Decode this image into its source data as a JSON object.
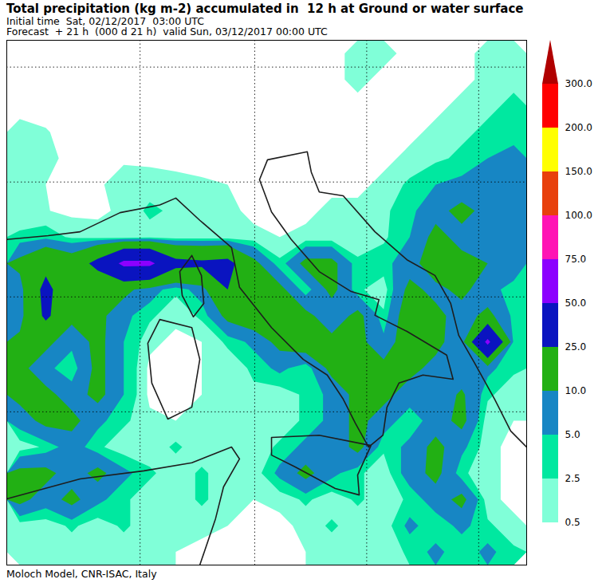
{
  "chart_data": {
    "type": "contour",
    "title": "Total precipitation (kg m-2) accumulated in  12 h at Ground or water surface",
    "subtitle": [
      "Initial time  Sat, 02/12/2017  03:00 UTC",
      "Forecast  + 21 h  (000 d 21 h)  valid Sun, 03/12/2017 00:00 UTC"
    ],
    "caption": "Moloch Model, CNR-ISAC, Italy",
    "xlim": [
      2,
      21.5
    ],
    "ylim": [
      35,
      48.7
    ],
    "xticks": [
      7,
      11.3,
      15.5,
      19.7
    ],
    "yticks": [
      39,
      42,
      45,
      48
    ],
    "grid": true,
    "tick_labels": false,
    "precipitation": {
      "values": [
        [
          0,
          0,
          0,
          0,
          0,
          0,
          0,
          0,
          0,
          0,
          0,
          0,
          0,
          1,
          1,
          0,
          0,
          0,
          1,
          1
        ],
        [
          0,
          0,
          0,
          0,
          0,
          0,
          0,
          0,
          0,
          0,
          0,
          0,
          0,
          1,
          0,
          0,
          0,
          0,
          1,
          2
        ],
        [
          0,
          0,
          0,
          0,
          0,
          0,
          0,
          0,
          0,
          0,
          0,
          0,
          0,
          0,
          0,
          0,
          0,
          1,
          2,
          3
        ],
        [
          1,
          0.6,
          0,
          0,
          0,
          0,
          0,
          0,
          0,
          0,
          0,
          0,
          0,
          0,
          0,
          0,
          1,
          2,
          3,
          4
        ],
        [
          1.5,
          1,
          0,
          0,
          0,
          0,
          0,
          0,
          0,
          0,
          0,
          0,
          0,
          0,
          0,
          1,
          2,
          3,
          5,
          6
        ],
        [
          1,
          0.5,
          0,
          0,
          2,
          1.5,
          1,
          0.7,
          0.5,
          0,
          0,
          0,
          0,
          0,
          1,
          3,
          5,
          6,
          8,
          6
        ],
        [
          1,
          0.6,
          0,
          0,
          1,
          3,
          2,
          1.5,
          1,
          0,
          0,
          0,
          1,
          1,
          2,
          4,
          8,
          12,
          8,
          6
        ],
        [
          3,
          4,
          2,
          1.5,
          1,
          1.5,
          1,
          1,
          1,
          1,
          0.5,
          1,
          1,
          1,
          2,
          5,
          12,
          8,
          6,
          5
        ],
        [
          12,
          20,
          15,
          30,
          55,
          55,
          30,
          28,
          30,
          12,
          3,
          12,
          12,
          3,
          4,
          7,
          15,
          12,
          10,
          7
        ],
        [
          7,
          30,
          12,
          12,
          12,
          7,
          3,
          7,
          25,
          15,
          12,
          3,
          12,
          3,
          1,
          12,
          8,
          12,
          6,
          4
        ],
        [
          7,
          28,
          12,
          12,
          6,
          3,
          1,
          3,
          12,
          15,
          15,
          12,
          6,
          12,
          3,
          15,
          12,
          7,
          12,
          4
        ],
        [
          12,
          12,
          6,
          12,
          5,
          1,
          0,
          0.5,
          3,
          6,
          12,
          15,
          12,
          12,
          6,
          15,
          12,
          6,
          55,
          4
        ],
        [
          12,
          6,
          3,
          12,
          5,
          0,
          0,
          0.5,
          1,
          3,
          6,
          3,
          12,
          15,
          12,
          12,
          8,
          6,
          6,
          3
        ],
        [
          12,
          12,
          7,
          12,
          5,
          0,
          0,
          0.5,
          1,
          2,
          1,
          3,
          6,
          12,
          12,
          7,
          6,
          11,
          3,
          1
        ],
        [
          7,
          12,
          12,
          6,
          3,
          1,
          0.5,
          1,
          1,
          1,
          1,
          3,
          6,
          12,
          7,
          3,
          7,
          12,
          1,
          0.5
        ],
        [
          1,
          3,
          7,
          3,
          1,
          1,
          3,
          1,
          1,
          1,
          3,
          6,
          6,
          12,
          3,
          6,
          12,
          6,
          1,
          0
        ],
        [
          12,
          12,
          7,
          12,
          6,
          3,
          1,
          3,
          1,
          1,
          6,
          12,
          6,
          3,
          1,
          7,
          12,
          3,
          1,
          0
        ],
        [
          12,
          7,
          12,
          6,
          3,
          1,
          1,
          3,
          1,
          0.5,
          1,
          3,
          1,
          3,
          1,
          3,
          7,
          12,
          1,
          0
        ],
        [
          1,
          1,
          3,
          1,
          3,
          1,
          0.5,
          1,
          0.5,
          0,
          0,
          1,
          3,
          1,
          1,
          6,
          3,
          6,
          3,
          1
        ],
        [
          1,
          1,
          1,
          0.5,
          1,
          1,
          0.5,
          0,
          0,
          0,
          0,
          0.5,
          1,
          1,
          1,
          3,
          6,
          3,
          6,
          3
        ]
      ]
    },
    "colorbar": {
      "ticks": [
        0.5,
        2.5,
        {
          "value": 5,
          "label": "5.0"
        },
        {
          "value": 10,
          "label": "10.0"
        },
        {
          "value": 25,
          "label": "25.0"
        },
        {
          "value": 50,
          "label": "50.0"
        },
        {
          "value": 75,
          "label": "75.0"
        },
        {
          "value": 100,
          "label": "100.0"
        },
        {
          "value": 150,
          "label": "150.0"
        },
        {
          "value": 200,
          "label": "200.0"
        },
        {
          "value": 300,
          "label": "300.0"
        }
      ],
      "colors": [
        "#80ffd8",
        "#00e8a0",
        "#1786c4",
        "#22b014",
        "#0a14c0",
        "#8c00ff",
        "#ff14b4",
        "#e8400c",
        "#ffff00",
        "#ff0000",
        "#b00000"
      ]
    },
    "coastlines": [
      [
        [
          2.0,
          43.5
        ],
        [
          3.55,
          43.6
        ],
        [
          4.75,
          43.7
        ],
        [
          6.25,
          44.2
        ],
        [
          7.74,
          44.4
        ],
        [
          8.34,
          44.58
        ],
        [
          9.24,
          44.0
        ],
        [
          10.43,
          43.29
        ],
        [
          10.73,
          42.25
        ],
        [
          11.93,
          41.2
        ],
        [
          13.12,
          40.37
        ],
        [
          14.02,
          39.96
        ],
        [
          14.62,
          39.33
        ],
        [
          15.07,
          38.71
        ],
        [
          15.57,
          38.08
        ],
        [
          16.11,
          38.39
        ],
        [
          16.26,
          39.12
        ],
        [
          16.71,
          39.75
        ],
        [
          17.61,
          39.96
        ],
        [
          18.74,
          39.85
        ],
        [
          18.5,
          40.48
        ],
        [
          17.01,
          41.1
        ],
        [
          15.81,
          41.52
        ],
        [
          15.96,
          41.93
        ],
        [
          14.92,
          42.14
        ],
        [
          13.72,
          42.66
        ],
        [
          12.67,
          43.5
        ],
        [
          11.93,
          44.22
        ],
        [
          11.48,
          45.06
        ],
        [
          11.78,
          45.58
        ],
        [
          13.27,
          45.79
        ],
        [
          13.42,
          45.26
        ],
        [
          13.72,
          44.74
        ],
        [
          14.62,
          44.64
        ],
        [
          15.81,
          43.7
        ],
        [
          17.01,
          42.97
        ],
        [
          18.06,
          42.56
        ],
        [
          18.65,
          41.83
        ],
        [
          18.95,
          41.0
        ],
        [
          19.55,
          40.27
        ],
        [
          20.3,
          39.33
        ],
        [
          20.9,
          38.5
        ],
        [
          21.5,
          38.08
        ]
      ],
      [
        [
          11.93,
          38.33
        ],
        [
          13.72,
          38.39
        ],
        [
          15.66,
          38.12
        ],
        [
          15.16,
          37.35
        ],
        [
          15.22,
          36.83
        ],
        [
          14.32,
          37.0
        ],
        [
          12.82,
          37.56
        ],
        [
          11.93,
          37.87
        ],
        [
          11.93,
          38.33
        ]
      ],
      [
        [
          7.74,
          41.41
        ],
        [
          8.94,
          41.2
        ],
        [
          9.24,
          40.37
        ],
        [
          8.94,
          39.12
        ],
        [
          8.04,
          38.81
        ],
        [
          7.44,
          39.75
        ],
        [
          7.29,
          40.79
        ],
        [
          7.74,
          41.41
        ]
      ],
      [
        [
          8.94,
          43.08
        ],
        [
          9.3,
          42.56
        ],
        [
          9.39,
          41.83
        ],
        [
          9.0,
          41.48
        ],
        [
          8.58,
          42.04
        ],
        [
          8.49,
          42.66
        ],
        [
          8.94,
          43.08
        ]
      ],
      [
        [
          2.0,
          36.73
        ],
        [
          4.75,
          37.25
        ],
        [
          7.14,
          37.46
        ],
        [
          8.94,
          37.67
        ],
        [
          10.43,
          38.08
        ],
        [
          10.73,
          37.77
        ],
        [
          10.13,
          37.04
        ],
        [
          9.83,
          36.21
        ],
        [
          9.24,
          35.0
        ]
      ]
    ]
  }
}
